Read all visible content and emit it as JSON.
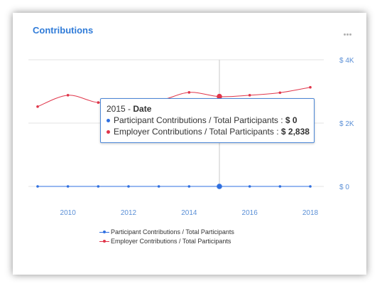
{
  "card": {
    "title": "Contributions",
    "menu_icon": "ellipsis-icon"
  },
  "chart_data": {
    "type": "line",
    "title": "",
    "xlabel": "",
    "ylabel": "",
    "x": [
      2009,
      2010,
      2011,
      2012,
      2013,
      2014,
      2015,
      2016,
      2017,
      2018
    ],
    "x_ticks": [
      "2010",
      "2012",
      "2014",
      "2016",
      "2018"
    ],
    "y_ticks": [
      "$ 0",
      "$ 2K",
      "$ 4K"
    ],
    "ylim": [
      0,
      4000
    ],
    "y_axis_side": "right",
    "grid": true,
    "series": [
      {
        "name": "Participant Contributions / Total Participants",
        "color": "#2f6fe0",
        "values": [
          0,
          0,
          0,
          0,
          0,
          0,
          0,
          0,
          0,
          0
        ]
      },
      {
        "name": "Employer Contributions / Total Participants",
        "color": "#e0354a",
        "values": [
          2520,
          2880,
          2650,
          2730,
          2710,
          2970,
          2838,
          2880,
          2960,
          3130
        ]
      }
    ],
    "legend_position": "bottom",
    "highlight_x": 2015,
    "tooltip": {
      "header_value": "2015",
      "header_sep": " - ",
      "header_label": "Date",
      "rows": [
        {
          "label": "Participant Contributions / Total Participants : ",
          "value": "$ 0"
        },
        {
          "label": "Employer Contributions / Total Participants : ",
          "value": "$ 2,838"
        }
      ]
    }
  }
}
